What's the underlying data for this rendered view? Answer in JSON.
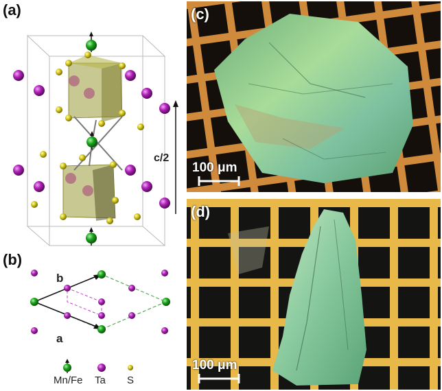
{
  "panels": {
    "a": {
      "label": "(a)",
      "c_label": "c/2"
    },
    "b": {
      "label": "(b)",
      "axis_b": "b",
      "axis_a": "a"
    },
    "c": {
      "label": "(c)",
      "scale": "100 μm"
    },
    "d": {
      "label": "(d)",
      "scale": "100 μm"
    }
  },
  "legend": [
    {
      "label": "Mn/Fe",
      "color": "#1aa51a"
    },
    {
      "label": "Ta",
      "color": "#b020b8"
    },
    {
      "label": "S",
      "color": "#c8c020"
    }
  ],
  "colors": {
    "mnfe": "#1aa51a",
    "ta": "#b020b8",
    "s": "#d4c818",
    "octa": "#9a9a38",
    "grid_c": "#d48a3a",
    "grid_d": "#e6b848",
    "flake": "#8fcf96"
  }
}
